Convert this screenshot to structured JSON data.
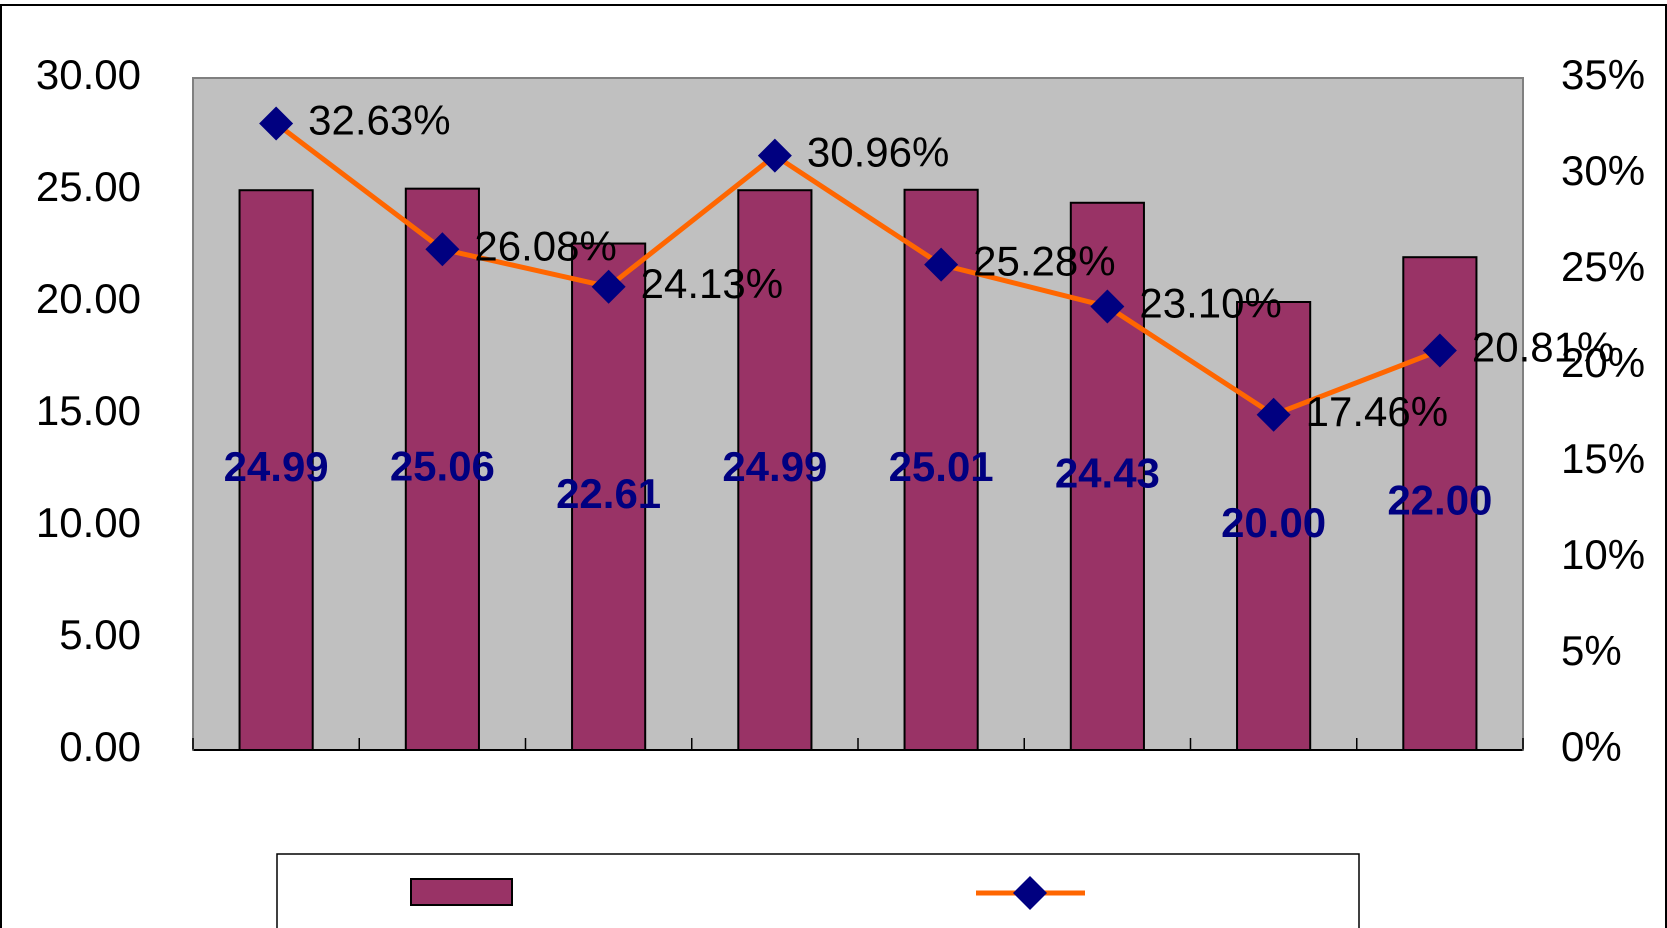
{
  "chart_data": {
    "type": "bar",
    "categories": [
      null,
      null,
      null,
      null,
      null,
      null,
      null,
      null
    ],
    "series": [
      {
        "type": "bar",
        "color": "#993366",
        "label_color": "#000080",
        "values": [
          24.99,
          25.06,
          22.61,
          24.99,
          25.01,
          24.43,
          20.0,
          22.0
        ],
        "value_labels": [
          "24.99",
          "25.06",
          "22.61",
          "24.99",
          "25.01",
          "24.43",
          "20.00",
          "22.00"
        ]
      },
      {
        "type": "line",
        "axis": "y2",
        "color": "#ff6600",
        "marker_color": "#000080",
        "values": [
          32.63,
          26.08,
          24.13,
          30.96,
          25.28,
          23.1,
          17.46,
          20.81
        ],
        "value_labels": [
          "32.63%",
          "26.08%",
          "24.13%",
          "30.96%",
          "25.28%",
          "23.10%",
          "17.46%",
          "20.81%"
        ]
      }
    ],
    "ylim": [
      0,
      30
    ],
    "yticks": [
      {
        "value": 0,
        "label": "0.00"
      },
      {
        "value": 5,
        "label": "5.00"
      },
      {
        "value": 10,
        "label": "10.00"
      },
      {
        "value": 15,
        "label": "15.00"
      },
      {
        "value": 20,
        "label": "20.00"
      },
      {
        "value": 25,
        "label": "25.00"
      },
      {
        "value": 30,
        "label": "30.00"
      }
    ],
    "y2lim": [
      0,
      35
    ],
    "y2ticks": [
      {
        "value": 0,
        "label": "0%"
      },
      {
        "value": 5,
        "label": "5%"
      },
      {
        "value": 10,
        "label": "10%"
      },
      {
        "value": 15,
        "label": "15%"
      },
      {
        "value": 20,
        "label": "20%"
      },
      {
        "value": 25,
        "label": "25%"
      },
      {
        "value": 30,
        "label": "30%"
      },
      {
        "value": 35,
        "label": "35%"
      }
    ],
    "plot_background": "#c0c0c0",
    "grid": false,
    "legend": "bottom"
  }
}
